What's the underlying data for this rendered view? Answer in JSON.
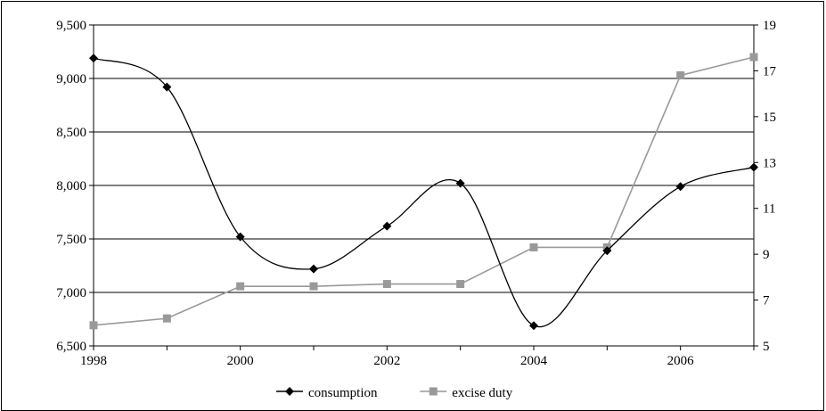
{
  "chart_data": {
    "type": "line",
    "x": [
      1998,
      1999,
      2000,
      2001,
      2002,
      2003,
      2004,
      2005,
      2006,
      2007
    ],
    "series": [
      {
        "name": "consumption",
        "axis": "left",
        "color": "#000000",
        "marker": "diamond",
        "smooth": true,
        "values": [
          9190,
          8920,
          7520,
          7220,
          7620,
          8020,
          6690,
          7390,
          7990,
          8170
        ]
      },
      {
        "name": "excise duty",
        "axis": "right",
        "color": "#999999",
        "marker": "square",
        "smooth": false,
        "values": [
          5.9,
          6.2,
          7.6,
          7.6,
          7.7,
          7.7,
          9.3,
          9.3,
          16.8,
          17.6
        ]
      }
    ],
    "x_ticks": [
      1998,
      2000,
      2002,
      2004,
      2006
    ],
    "y_left": {
      "range": [
        6500,
        9500
      ],
      "ticks": [
        "6,500",
        "7,000",
        "7,500",
        "8,000",
        "8,500",
        "9,000",
        "9,500"
      ]
    },
    "y_right": {
      "range": [
        5,
        19
      ],
      "ticks": [
        "5",
        "7",
        "9",
        "11",
        "13",
        "15",
        "17",
        "19"
      ]
    },
    "grid": "horizontal",
    "legend_position": "bottom"
  }
}
